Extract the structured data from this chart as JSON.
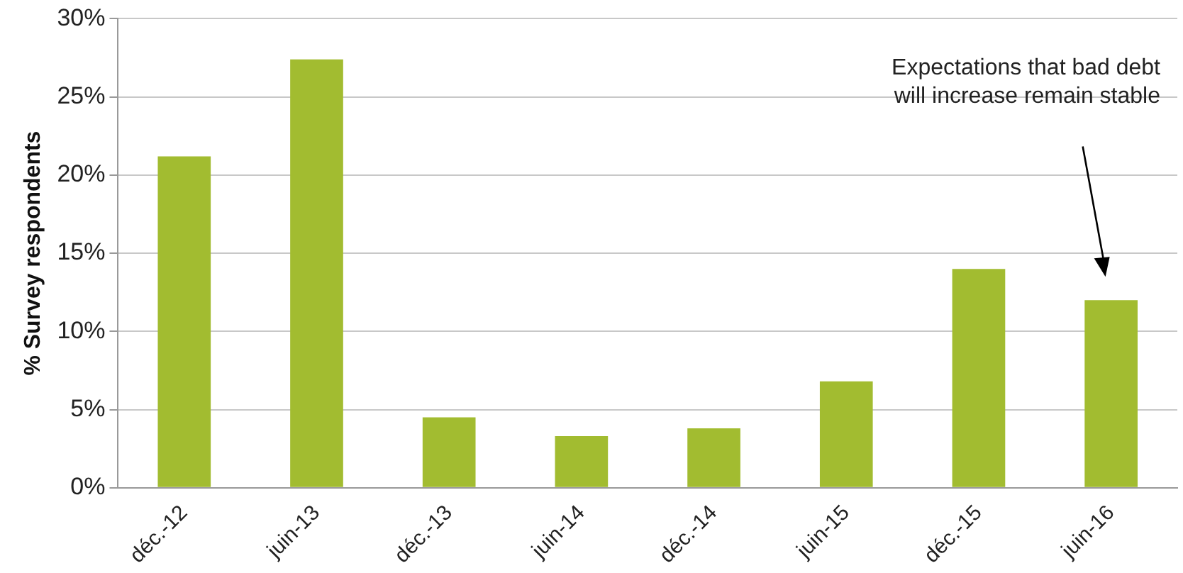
{
  "chart_data": {
    "type": "bar",
    "ylabel": "% Survey respondents",
    "categories": [
      "déc.-12",
      "juin-13",
      "déc.-13",
      "juin-14",
      "déc.-14",
      "juin-15",
      "déc.-15",
      "juin-16"
    ],
    "values": [
      21.2,
      27.4,
      4.5,
      3.3,
      3.8,
      6.8,
      14.0,
      12.0
    ],
    "color": "#a2bc30",
    "ylim": [
      0,
      30
    ],
    "yticks": [
      {
        "value": 0,
        "label": "0%"
      },
      {
        "value": 5,
        "label": "5%"
      },
      {
        "value": 10,
        "label": "10%"
      },
      {
        "value": 15,
        "label": "15%"
      },
      {
        "value": 20,
        "label": "20%"
      },
      {
        "value": 25,
        "label": "25%"
      },
      {
        "value": 30,
        "label": "30%"
      }
    ],
    "grid": "y",
    "annotations": [
      "Expectations that bad debt\nwill increase remain stable"
    ]
  }
}
